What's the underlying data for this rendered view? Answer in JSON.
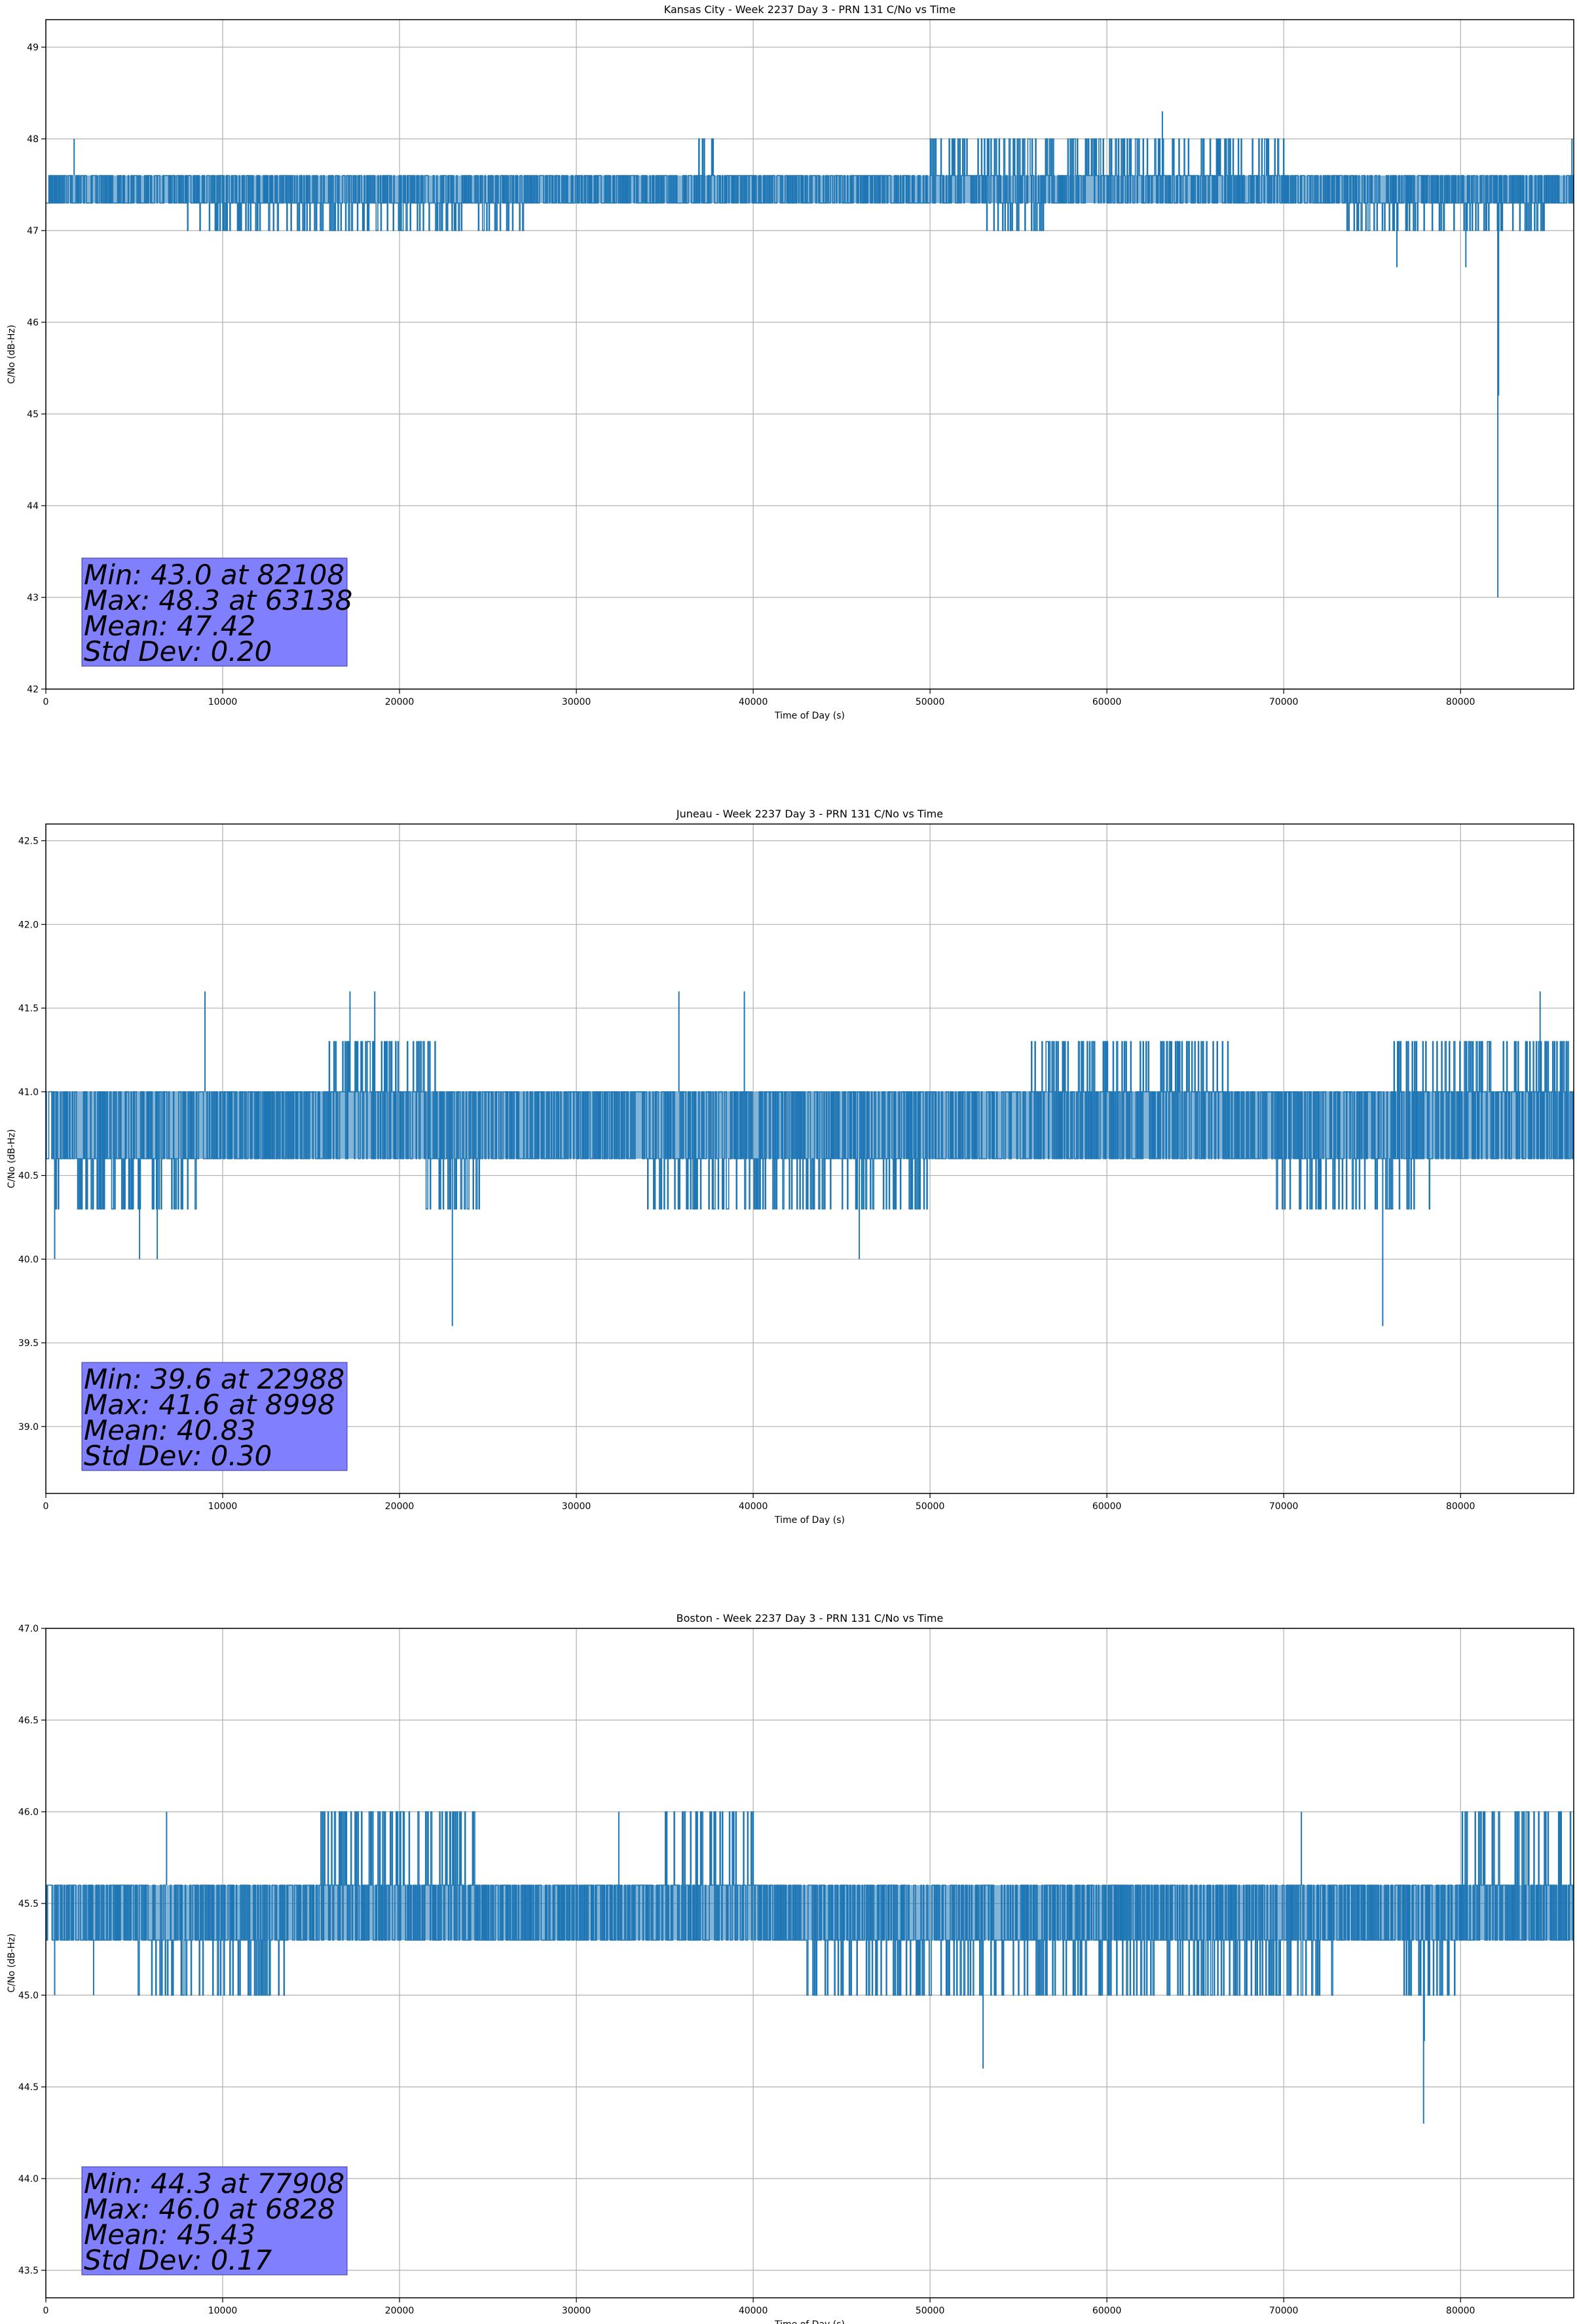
{
  "chart_data": [
    {
      "type": "line",
      "title": "Kansas City - Week 2237 Day 3 - PRN 131 C/No vs Time",
      "xlabel": "Time of Day (s)",
      "ylabel": "C/No (dB-Hz)",
      "xlim": [
        0,
        86400
      ],
      "ylim": [
        42,
        49.3
      ],
      "xticks": [
        0,
        10000,
        20000,
        30000,
        40000,
        50000,
        60000,
        70000,
        80000
      ],
      "yticks": [
        42,
        43,
        44,
        45,
        46,
        47,
        48,
        49
      ],
      "ytick_labels": [
        "42",
        "43",
        "44",
        "45",
        "46",
        "47",
        "48",
        "49"
      ],
      "grid": true,
      "series": [
        {
          "color": "#1f77b4",
          "base_levels": [
            47.3,
            47.6
          ],
          "secondary_level": 47.0,
          "secondary_ranges": [
            [
              8000,
              27000
            ],
            [
              53000,
              57000
            ],
            [
              73500,
              85000
            ]
          ],
          "upper_level": 48.0,
          "upper_ranges": [
            [
              36500,
              37800
            ],
            [
              50000,
              70000
            ]
          ],
          "spikes": [
            {
              "x": 1600,
              "y": 48.0
            },
            {
              "x": 63138,
              "y": 48.3
            },
            {
              "x": 76400,
              "y": 46.6
            },
            {
              "x": 80300,
              "y": 46.6
            },
            {
              "x": 82108,
              "y": 43.0
            },
            {
              "x": 82150,
              "y": 45.2
            },
            {
              "x": 86300,
              "y": 48.0
            }
          ]
        }
      ],
      "stats": [
        "Min: 43.0 at 82108",
        "Max: 48.3 at 63138",
        "Mean: 47.42",
        "Std Dev: 0.20"
      ]
    },
    {
      "type": "line",
      "title": "Juneau - Week 2237 Day 3 - PRN 131 C/No vs Time",
      "xlabel": "Time of Day (s)",
      "ylabel": "C/No (dB-Hz)",
      "xlim": [
        0,
        86400
      ],
      "ylim": [
        38.6,
        42.6
      ],
      "xticks": [
        0,
        10000,
        20000,
        30000,
        40000,
        50000,
        60000,
        70000,
        80000
      ],
      "yticks": [
        39.0,
        39.5,
        40.0,
        40.5,
        41.0,
        41.5,
        42.0,
        42.5
      ],
      "ytick_labels": [
        "39.0",
        "39.5",
        "40.0",
        "40.5",
        "41.0",
        "41.5",
        "42.0",
        "42.5"
      ],
      "grid": true,
      "series": [
        {
          "color": "#1f77b4",
          "base_levels": [
            40.6,
            41.0
          ],
          "secondary_level": 40.3,
          "secondary_ranges": [
            [
              500,
              8500
            ],
            [
              21500,
              24500
            ],
            [
              34000,
              50000
            ],
            [
              69000,
              78500
            ]
          ],
          "upper_level": 41.3,
          "upper_ranges": [
            [
              16000,
              22000
            ],
            [
              55500,
              67000
            ],
            [
              76000,
              86400
            ]
          ],
          "spikes": [
            {
              "x": 500,
              "y": 40.0
            },
            {
              "x": 5300,
              "y": 40.0
            },
            {
              "x": 6300,
              "y": 40.0
            },
            {
              "x": 8998,
              "y": 41.6
            },
            {
              "x": 17200,
              "y": 41.6
            },
            {
              "x": 18600,
              "y": 41.6
            },
            {
              "x": 22988,
              "y": 39.6
            },
            {
              "x": 35800,
              "y": 41.6
            },
            {
              "x": 39500,
              "y": 41.6
            },
            {
              "x": 46000,
              "y": 40.0
            },
            {
              "x": 75600,
              "y": 39.6
            },
            {
              "x": 84500,
              "y": 41.6
            }
          ]
        }
      ],
      "stats": [
        "Min: 39.6 at 22988",
        "Max: 41.6 at 8998",
        "Mean: 40.83",
        "Std Dev: 0.30"
      ]
    },
    {
      "type": "line",
      "title": "Boston - Week 2237 Day 3 - PRN 131 C/No vs Time",
      "xlabel": "Time of Day (s)",
      "ylabel": "C/No (dB-Hz)",
      "xlim": [
        0,
        86400
      ],
      "ylim": [
        43.35,
        47.0
      ],
      "xticks": [
        0,
        10000,
        20000,
        30000,
        40000,
        50000,
        60000,
        70000,
        80000
      ],
      "yticks": [
        43.5,
        44.0,
        44.5,
        45.0,
        45.5,
        46.0,
        46.5,
        47.0
      ],
      "ytick_labels": [
        "43.5",
        "44.0",
        "44.5",
        "45.0",
        "45.5",
        "46.0",
        "46.5",
        "47.0"
      ],
      "grid": true,
      "series": [
        {
          "color": "#1f77b4",
          "base_levels": [
            45.3,
            45.6
          ],
          "secondary_level": 45.0,
          "secondary_ranges": [
            [
              5000,
              13500
            ],
            [
              43000,
              73000
            ],
            [
              76000,
              80000
            ]
          ],
          "upper_level": 46.0,
          "upper_ranges": [
            [
              15500,
              24500
            ],
            [
              35000,
              40000
            ],
            [
              80000,
              86400
            ]
          ],
          "spikes": [
            {
              "x": 500,
              "y": 45.0
            },
            {
              "x": 2700,
              "y": 45.0
            },
            {
              "x": 6828,
              "y": 46.0
            },
            {
              "x": 32400,
              "y": 46.0
            },
            {
              "x": 53000,
              "y": 44.6
            },
            {
              "x": 71000,
              "y": 46.0
            },
            {
              "x": 77908,
              "y": 44.3
            },
            {
              "x": 77950,
              "y": 44.75
            }
          ]
        }
      ],
      "stats": [
        "Min: 44.3 at 77908",
        "Max: 46.0 at 6828",
        "Mean: 45.43",
        "Std Dev: 0.17"
      ]
    }
  ]
}
